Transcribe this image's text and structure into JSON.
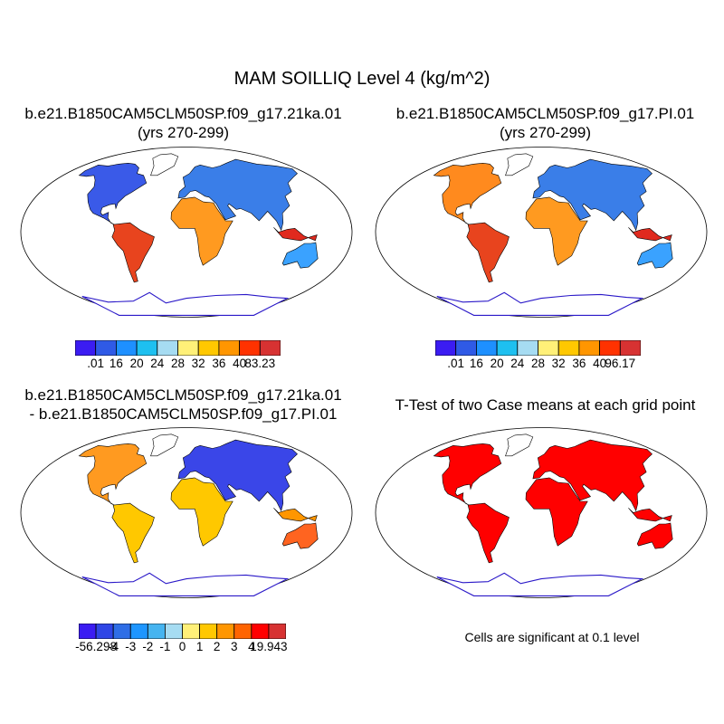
{
  "main_title": "MAM SOILLIQ Level 4 (kg/m^2)",
  "panels": {
    "top_left": {
      "case": "b.e21.B1850CAM5CLM50SP.f09_g17.21ka.01",
      "years": "(yrs 270-299)"
    },
    "top_right": {
      "case": "b.e21.B1850CAM5CLM50SP.f09_g17.PI.01",
      "years": "(yrs 270-299)"
    },
    "bottom_left": {
      "line1": "b.e21.B1850CAM5CLM50SP.f09_g17.21ka.01",
      "line2": "- b.e21.B1850CAM5CLM50SP.f09_g17.PI.01"
    },
    "bottom_right": {
      "title": "T-Test of two Case means at each grid point",
      "footnote": "Cells are significant at 0.1 level"
    }
  },
  "chart_data": [
    {
      "type": "heatmap",
      "title": "b.e21.B1850CAM5CLM50SP.f09_g17.21ka.01 (yrs 270-299)",
      "colorbar": {
        "labels": [
          ".01",
          "16",
          "20",
          "24",
          "28",
          "32",
          "36",
          "40",
          "83.23"
        ],
        "colors": [
          "#3b1cf2",
          "#2f5ae6",
          "#1e90ff",
          "#1ec0f0",
          "#a6dcf2",
          "#fff078",
          "#ffc800",
          "#ff9600",
          "#ff3200",
          "#d73232"
        ]
      }
    },
    {
      "type": "heatmap",
      "title": "b.e21.B1850CAM5CLM50SP.f09_g17.PI.01 (yrs 270-299)",
      "colorbar": {
        "labels": [
          ".01",
          "16",
          "20",
          "24",
          "28",
          "32",
          "36",
          "40",
          "96.17"
        ],
        "colors": [
          "#3b1cf2",
          "#2f5ae6",
          "#1e90ff",
          "#1ec0f0",
          "#a6dcf2",
          "#fff078",
          "#ffc800",
          "#ff9600",
          "#ff3200",
          "#d73232"
        ]
      }
    },
    {
      "type": "heatmap",
      "title": "b.e21.B1850CAM5CLM50SP.f09_g17.21ka.01 - b.e21.B1850CAM5CLM50SP.f09_g17.PI.01",
      "colorbar": {
        "labels": [
          "-56.298",
          "-4",
          "-3",
          "-2",
          "-1",
          "0",
          "1",
          "2",
          "3",
          "4",
          "19.943"
        ],
        "colors": [
          "#3b1cf2",
          "#2f46e6",
          "#2f6ee6",
          "#1e96ff",
          "#46b4f0",
          "#a6dcf2",
          "#fff078",
          "#ffc800",
          "#ff9600",
          "#ff6400",
          "#ff0000",
          "#d73232"
        ]
      }
    },
    {
      "type": "heatmap",
      "title": "T-Test of two Case means at each grid point",
      "significance_color": "#ff0000"
    }
  ]
}
